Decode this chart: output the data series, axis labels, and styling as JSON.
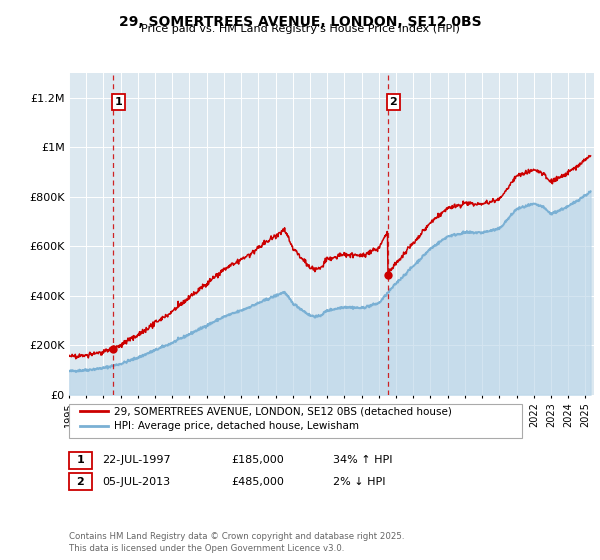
{
  "title": "29, SOMERTREES AVENUE, LONDON, SE12 0BS",
  "subtitle": "Price paid vs. HM Land Registry's House Price Index (HPI)",
  "ylim": [
    0,
    1300000
  ],
  "yticks": [
    0,
    200000,
    400000,
    600000,
    800000,
    1000000,
    1200000
  ],
  "ytick_labels": [
    "£0",
    "£200K",
    "£400K",
    "£600K",
    "£800K",
    "£1M",
    "£1.2M"
  ],
  "red_color": "#cc0000",
  "blue_color": "#7ab0d4",
  "blue_fill_color": "#b8d4e8",
  "legend_entry1": "29, SOMERTREES AVENUE, LONDON, SE12 0BS (detached house)",
  "legend_entry2": "HPI: Average price, detached house, Lewisham",
  "annotation1_label": "1",
  "annotation1_date": "22-JUL-1997",
  "annotation1_price": "£185,000",
  "annotation1_hpi": "34% ↑ HPI",
  "annotation2_label": "2",
  "annotation2_date": "05-JUL-2013",
  "annotation2_price": "£485,000",
  "annotation2_hpi": "2% ↓ HPI",
  "footer": "Contains HM Land Registry data © Crown copyright and database right 2025.\nThis data is licensed under the Open Government Licence v3.0.",
  "vline1_x": 1997.55,
  "vline2_x": 2013.51,
  "sale1_x": 1997.55,
  "sale1_y": 185000,
  "sale2_x": 2013.51,
  "sale2_y": 485000,
  "xmin": 1995,
  "xmax": 2025.5
}
